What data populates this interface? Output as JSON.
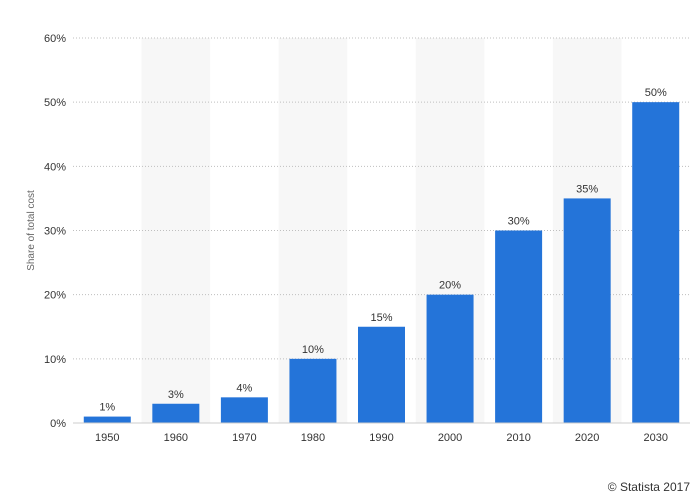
{
  "chart_data": {
    "type": "bar",
    "categories": [
      "1950",
      "1960",
      "1970",
      "1980",
      "1990",
      "2000",
      "2010",
      "2020",
      "2030"
    ],
    "values": [
      1,
      3,
      4,
      10,
      15,
      20,
      30,
      35,
      50
    ],
    "value_labels": [
      "1%",
      "3%",
      "4%",
      "10%",
      "15%",
      "20%",
      "30%",
      "35%",
      "50%"
    ],
    "ylabel": "Share of total cost",
    "xlabel": "",
    "ylim": [
      0,
      60
    ],
    "yticks": [
      {
        "value": 0,
        "label": "0%"
      },
      {
        "value": 10,
        "label": "10%"
      },
      {
        "value": 20,
        "label": "20%"
      },
      {
        "value": 30,
        "label": "30%"
      },
      {
        "value": 40,
        "label": "40%"
      },
      {
        "value": 50,
        "label": "50%"
      },
      {
        "value": 60,
        "label": "60%"
      }
    ],
    "grid": true,
    "alternating_column_bands": true,
    "colors": {
      "bar": "#2474d9",
      "band": "#f7f7f7",
      "grid": "#bfbfbf",
      "text": "#333333",
      "axis_label": "#666666"
    }
  },
  "credit": "© Statista 2017"
}
